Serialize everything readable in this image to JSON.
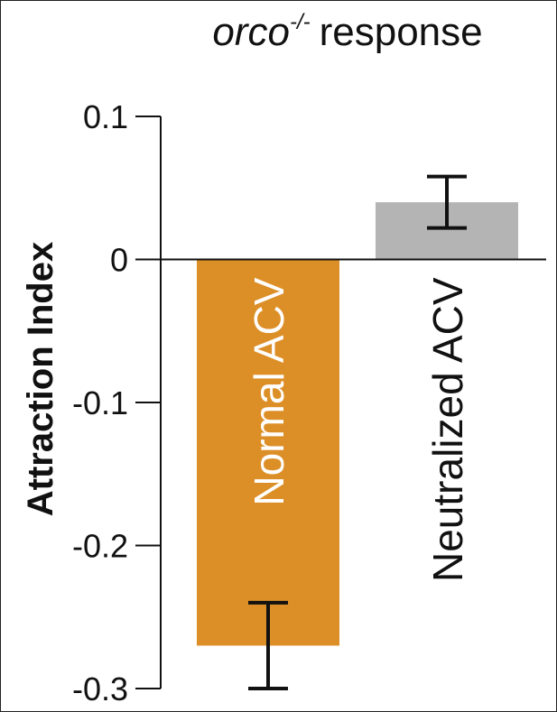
{
  "chart_data": {
    "type": "bar",
    "title": [
      "orco",
      "-/-",
      "response"
    ],
    "y_label": "Attraction Index",
    "categories": [
      "Normal ACV",
      "Neutralized ACV"
    ],
    "values": [
      -0.27,
      0.04
    ],
    "errors": [
      0.03,
      0.018
    ],
    "colors": [
      "#dd8f27",
      "#b4b4b4"
    ],
    "label_colors": [
      "#ffffff",
      "#111111"
    ],
    "ylim": [
      -0.3,
      0.1
    ],
    "yticks": [
      -0.3,
      -0.2,
      -0.1,
      0,
      0.1
    ]
  }
}
